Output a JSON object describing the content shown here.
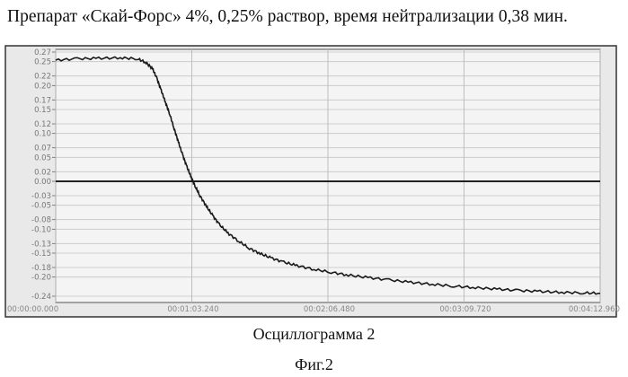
{
  "page": {
    "title": "Препарат «Скай-Форс» 4%, 0,25% раствор, время нейтрализации 0,38 мин.",
    "caption": "Осциллограмма 2",
    "figure_label": "Фиг.2"
  },
  "chart_data": {
    "type": "line",
    "title": "",
    "xlabel": "",
    "ylabel": "",
    "xlim": [
      0,
      252.96
    ],
    "ylim": [
      -0.24,
      0.27
    ],
    "grid": true,
    "x_tick_labels": [
      "00:00:00.000",
      "00:01:03.240",
      "00:02:06.480",
      "00:03:09.720",
      "00:04:12.960"
    ],
    "x_tick_values": [
      0,
      63.24,
      126.48,
      189.72,
      252.96
    ],
    "y_tick_labels": [
      "0.27",
      "0.25",
      "0.22",
      "0.20",
      "0.17",
      "0.15",
      "0.12",
      "0.10",
      "0.07",
      "0.05",
      "0.02",
      "0.00",
      "-0.03",
      "-0.05",
      "-0.08",
      "-0.10",
      "-0.13",
      "-0.15",
      "-0.18",
      "-0.20",
      "-0.24"
    ],
    "y_tick_values": [
      0.27,
      0.25,
      0.22,
      0.2,
      0.17,
      0.15,
      0.12,
      0.1,
      0.07,
      0.05,
      0.02,
      0.0,
      -0.03,
      -0.05,
      -0.08,
      -0.1,
      -0.13,
      -0.15,
      -0.18,
      -0.2,
      -0.24
    ],
    "zero_line": 0.0,
    "series": [
      {
        "x": [
          0,
          10,
          20,
          30,
          38,
          42,
          45,
          47,
          49,
          51,
          53,
          55,
          57,
          59,
          61,
          63,
          65,
          67,
          70,
          73,
          76,
          80,
          85,
          90,
          95,
          100,
          106,
          112,
          120,
          128,
          136,
          145,
          155,
          165,
          175,
          185,
          195,
          205,
          215,
          225,
          235,
          245,
          252.96
        ],
        "y": [
          0.253,
          0.256,
          0.257,
          0.258,
          0.256,
          0.248,
          0.235,
          0.215,
          0.19,
          0.165,
          0.14,
          0.11,
          0.082,
          0.055,
          0.03,
          0.008,
          -0.012,
          -0.03,
          -0.052,
          -0.072,
          -0.09,
          -0.108,
          -0.125,
          -0.14,
          -0.151,
          -0.16,
          -0.169,
          -0.176,
          -0.184,
          -0.19,
          -0.196,
          -0.201,
          -0.206,
          -0.211,
          -0.215,
          -0.219,
          -0.222,
          -0.225,
          -0.228,
          -0.23,
          -0.232,
          -0.233,
          -0.234
        ]
      }
    ]
  }
}
